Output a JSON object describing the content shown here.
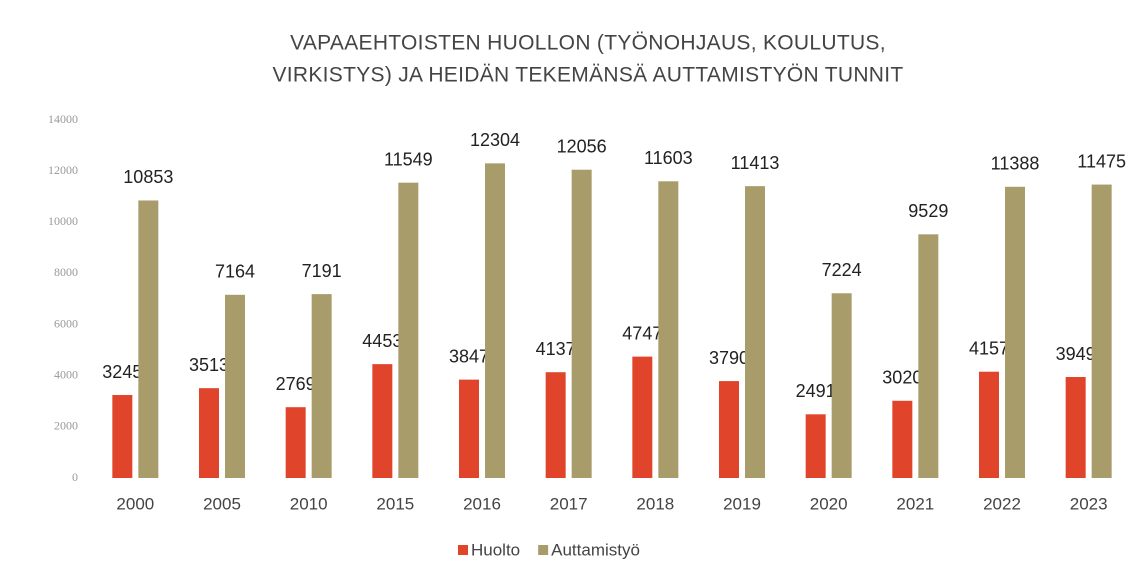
{
  "chart_data": {
    "type": "bar",
    "title": [
      "VAPAAEHTOISTEN HUOLLON (TYÖNOHJAUS, KOULUTUS,",
      "VIRKISTYS) JA HEIDÄN TEKEMÄNSÄ AUTTAMISTYÖN TUNNIT"
    ],
    "categories": [
      "2000",
      "2005",
      "2010",
      "2015",
      "2016",
      "2017",
      "2018",
      "2019",
      "2020",
      "2021",
      "2022",
      "2023"
    ],
    "series": [
      {
        "name": "Huolto",
        "color": "#e0452b",
        "values": [
          3245,
          3513,
          2769,
          4453,
          3847,
          4137,
          4747,
          3790,
          2491,
          3020,
          4157,
          3949
        ]
      },
      {
        "name": "Auttamistyö",
        "color": "#a89c6a",
        "values": [
          10853,
          7164,
          7191,
          11549,
          12304,
          12056,
          11603,
          11413,
          7224,
          9529,
          11388,
          11475
        ]
      }
    ],
    "ylim": [
      0,
      14000
    ],
    "yticks": [
      0,
      2000,
      4000,
      6000,
      8000,
      10000,
      12000,
      14000
    ],
    "grid": false,
    "legend": "bottom"
  }
}
